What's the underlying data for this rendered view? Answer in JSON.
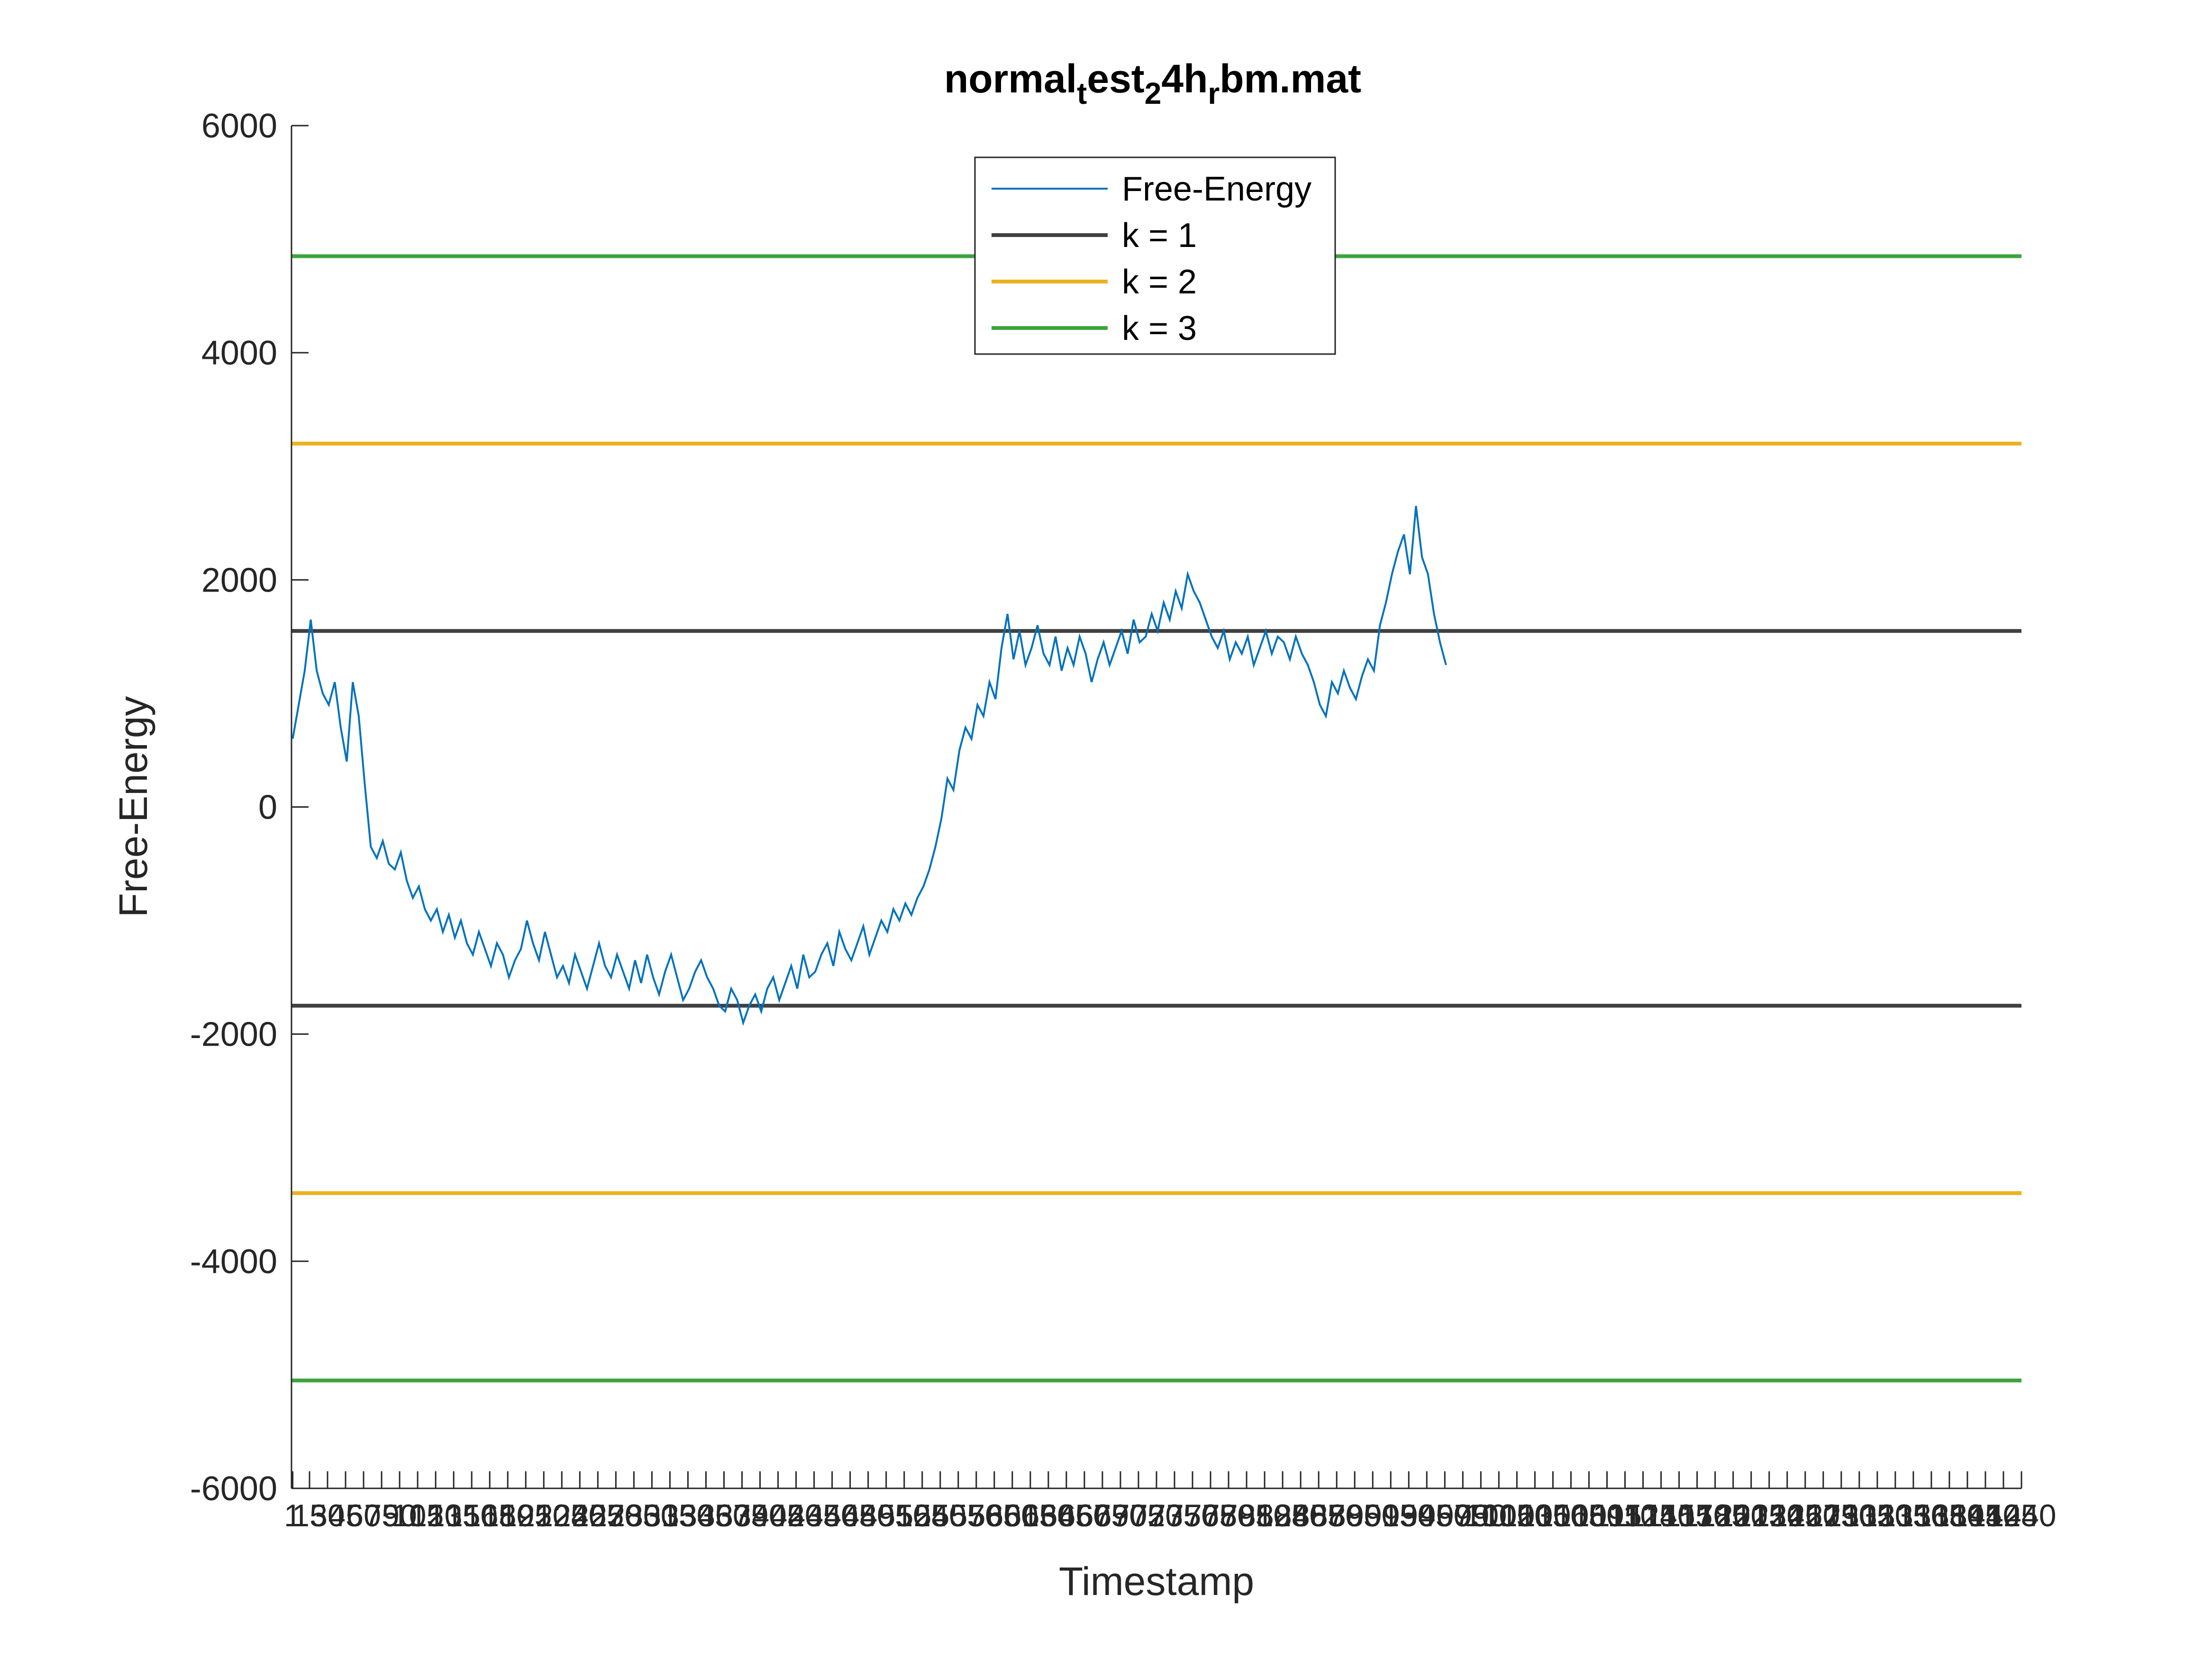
{
  "chart_data": {
    "type": "line",
    "title": "normal_test_24h_rbm.mat",
    "title_display": {
      "parts": [
        {
          "text": "normal",
          "sub": false
        },
        {
          "text": "t",
          "sub": true
        },
        {
          "text": "est",
          "sub": false
        },
        {
          "text": "2",
          "sub": true
        },
        {
          "text": "4h",
          "sub": false
        },
        {
          "text": "r",
          "sub": true
        },
        {
          "text": "bm.mat",
          "sub": false
        }
      ]
    },
    "xlabel": "Timestamp",
    "ylabel": "Free-Energy",
    "xlim": [
      0,
      1440
    ],
    "ylim": [
      -6000,
      6000
    ],
    "yticks": [
      -6000,
      -4000,
      -2000,
      0,
      2000,
      4000,
      6000
    ],
    "ytick_labels": [
      "-6000",
      "-4000",
      "-2000",
      "0",
      "2000",
      "4000",
      "6000"
    ],
    "xticks": [
      1,
      15,
      30,
      45,
      60,
      75,
      90,
      105,
      120,
      135,
      150,
      165,
      180,
      195,
      210,
      225,
      240,
      255,
      270,
      285,
      300,
      315,
      330,
      345,
      360,
      375,
      390,
      405,
      420,
      435,
      450,
      465,
      480,
      495,
      510,
      525,
      540,
      555,
      570,
      585,
      600,
      615,
      630,
      645,
      660,
      675,
      690,
      705,
      720,
      735,
      750,
      765,
      780,
      795,
      810,
      825,
      840,
      855,
      870,
      885,
      900,
      915,
      930,
      945,
      960,
      975,
      990,
      1005,
      1020,
      1035,
      1050,
      1065,
      1080,
      1095,
      1110,
      1125,
      1140,
      1155,
      1170,
      1185,
      1200,
      1215,
      1230,
      1245,
      1260,
      1275,
      1290,
      1305,
      1320,
      1335,
      1350,
      1365,
      1380,
      1395,
      1410,
      1425,
      1440
    ],
    "grid": false,
    "legend": {
      "position": "top-center"
    },
    "series": [
      {
        "name": "Free-Energy",
        "color": "#0072BD",
        "x_start": 1,
        "x_step": 5,
        "values": [
          600,
          900,
          1200,
          1650,
          1200,
          1000,
          900,
          1100,
          700,
          400,
          1100,
          800,
          200,
          -350,
          -450,
          -300,
          -500,
          -550,
          -400,
          -650,
          -800,
          -700,
          -900,
          -1000,
          -900,
          -1100,
          -950,
          -1150,
          -1000,
          -1200,
          -1300,
          -1100,
          -1250,
          -1400,
          -1200,
          -1300,
          -1500,
          -1350,
          -1250,
          -1000,
          -1200,
          -1350,
          -1100,
          -1300,
          -1500,
          -1400,
          -1550,
          -1300,
          -1450,
          -1600,
          -1400,
          -1200,
          -1400,
          -1500,
          -1300,
          -1450,
          -1600,
          -1350,
          -1550,
          -1300,
          -1500,
          -1650,
          -1450,
          -1300,
          -1500,
          -1700,
          -1600,
          -1450,
          -1350,
          -1500,
          -1600,
          -1750,
          -1800,
          -1600,
          -1700,
          -1900,
          -1750,
          -1650,
          -1800,
          -1600,
          -1500,
          -1700,
          -1550,
          -1400,
          -1600,
          -1300,
          -1500,
          -1450,
          -1300,
          -1200,
          -1400,
          -1100,
          -1250,
          -1350,
          -1200,
          -1050,
          -1300,
          -1150,
          -1000,
          -1100,
          -900,
          -1000,
          -850,
          -950,
          -800,
          -700,
          -550,
          -350,
          -100,
          250,
          150,
          500,
          700,
          600,
          900,
          800,
          1100,
          950,
          1400,
          1700,
          1300,
          1550,
          1250,
          1400,
          1600,
          1350,
          1250,
          1500,
          1200,
          1400,
          1250,
          1500,
          1350,
          1100,
          1300,
          1450,
          1250,
          1400,
          1550,
          1350,
          1650,
          1450,
          1500,
          1700,
          1550,
          1800,
          1650,
          1900,
          1750,
          2050,
          1900,
          1800,
          1650,
          1500,
          1400,
          1550,
          1300,
          1450,
          1350,
          1500,
          1250,
          1400,
          1550,
          1350,
          1500,
          1450,
          1300,
          1500,
          1350,
          1250,
          1100,
          900,
          800,
          1100,
          1000,
          1200,
          1050,
          950,
          1150,
          1300,
          1200,
          1600,
          1800,
          2050,
          2250,
          2400,
          2050,
          2650,
          2200,
          2050,
          1700,
          1450,
          1250
        ]
      },
      {
        "name": "k = 1",
        "color": "#404040",
        "values": [
          1550,
          -1750
        ]
      },
      {
        "name": "k = 2",
        "color": "#EDB120",
        "values": [
          3200,
          -3400
        ]
      },
      {
        "name": "k = 3",
        "color": "#3DA33D",
        "values": [
          4850,
          -5050
        ]
      }
    ]
  }
}
